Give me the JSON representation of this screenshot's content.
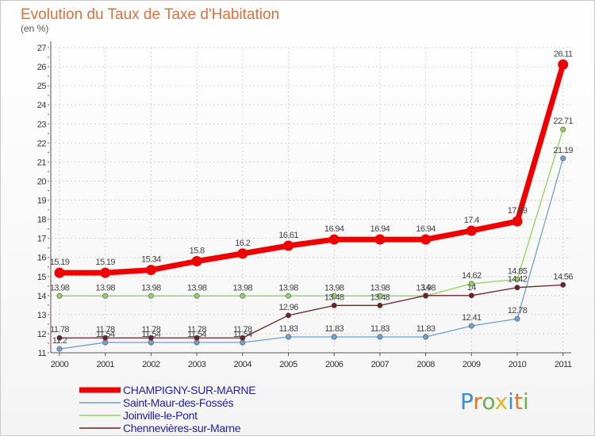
{
  "header": {
    "title": "Evolution du Taux de Taxe d'Habitation",
    "unit": "(en %)"
  },
  "logo": {
    "text": "Proxiti",
    "letter_colors": [
      "#3a8fd8",
      "#e07a2a",
      "#6ab04c",
      "#e2b52a",
      "#3a8fd8",
      "#e07a2a",
      "#6ab04c"
    ]
  },
  "chart_data": {
    "type": "line",
    "title": "Evolution du Taux de Taxe d'Habitation",
    "ylabel": "(en %)",
    "xlabel": "",
    "x": [
      "2000",
      "2001",
      "2002",
      "2003",
      "2004",
      "2005",
      "2006",
      "2007",
      "2008",
      "2009",
      "2010",
      "2011"
    ],
    "ylim": [
      11,
      27
    ],
    "yticks": [
      11,
      12,
      13,
      14,
      15,
      16,
      17,
      18,
      19,
      20,
      21,
      22,
      23,
      24,
      25,
      26,
      27
    ],
    "grid": true,
    "legend_position": "bottom-left",
    "series": [
      {
        "name": "CHAMPIGNY-SUR-MARNE",
        "color": "#ee0000",
        "emphasis": true,
        "values": [
          15.19,
          15.19,
          15.34,
          15.8,
          16.2,
          16.61,
          16.94,
          16.94,
          16.94,
          17.4,
          17.89,
          26.11
        ],
        "labels": [
          "15.19",
          "15.19",
          "15.34",
          "15.8",
          "16.2",
          "16.61",
          "16.94",
          "16.94",
          "16.94",
          "17.4",
          "17.89",
          "26.11"
        ]
      },
      {
        "name": "Saint-Maur-des-Fossés",
        "color": "#6ea1cf",
        "values": [
          11.2,
          11.54,
          11.54,
          11.54,
          11.54,
          11.83,
          11.83,
          11.83,
          11.83,
          12.41,
          12.78,
          21.19
        ],
        "labels": [
          "11.2",
          "11.54",
          "11.54",
          "11.54",
          "11.54",
          "11.83",
          "11.83",
          "11.83",
          "11.83",
          "12.41",
          "12.78",
          "21.19"
        ]
      },
      {
        "name": "Joinville-le-Pont",
        "color": "#8fd45a",
        "values": [
          13.98,
          13.98,
          13.98,
          13.98,
          13.98,
          13.98,
          13.98,
          13.98,
          13.98,
          14.62,
          14.85,
          22.71
        ],
        "labels": [
          "13.98",
          "13.98",
          "13.98",
          "13.98",
          "13.98",
          "13.98",
          "13.98",
          "13.98",
          "13.98",
          "14.62",
          "14.85",
          "22.71"
        ]
      },
      {
        "name": "Chennevières-sur-Marne",
        "color": "#6b2226",
        "values": [
          11.78,
          11.78,
          11.78,
          11.78,
          11.78,
          12.96,
          13.48,
          13.48,
          14,
          14,
          14.42,
          14.56
        ],
        "labels": [
          "11.78",
          "11.78",
          "11.78",
          "11.78",
          "11.78",
          "12.96",
          "13.48",
          "13.48",
          "14",
          "14",
          "14.42",
          "14.56"
        ]
      }
    ]
  }
}
